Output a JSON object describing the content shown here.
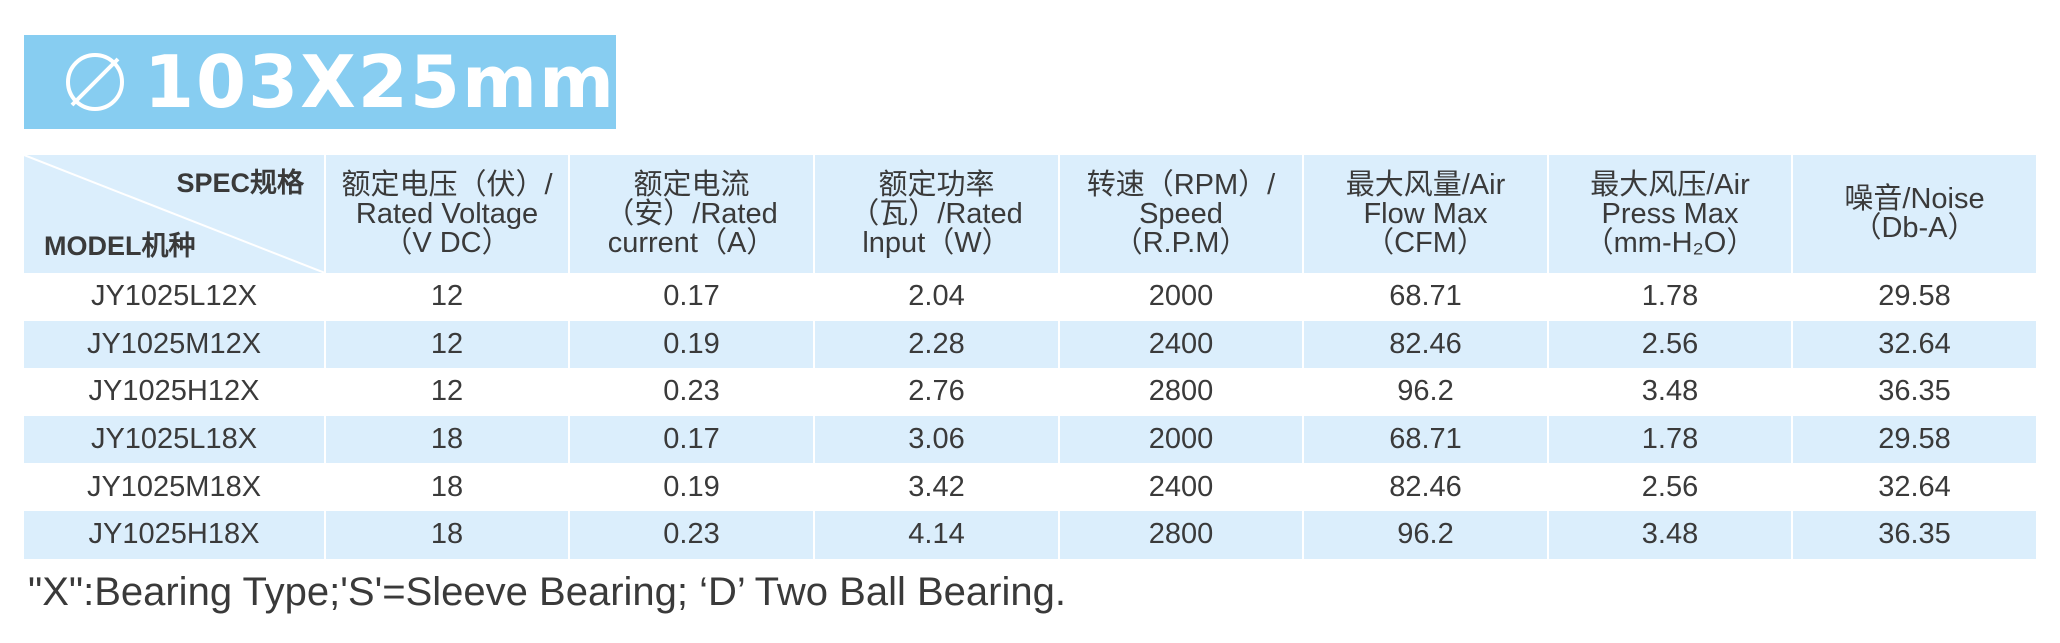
{
  "title": "103X25mm",
  "title_icon": "diameter-icon",
  "colors": {
    "banner": "#87cdf1",
    "header_bg": "#dbeefc",
    "alt_row_bg": "#dbeefc",
    "text": "#3a3a3a"
  },
  "table": {
    "corner": {
      "top_label": "SPEC规格",
      "bottom_label": "MODEL机种"
    },
    "headers": [
      [
        "额定电压（伏）/",
        "Rated Voltage",
        "（V DC）"
      ],
      [
        "额定电流",
        "（安）/Rated",
        "current（A）"
      ],
      [
        "额定功率",
        "（瓦）/Rated",
        "lnput（W）"
      ],
      [
        "转速（RPM）/",
        "Speed",
        "（R.P.M）"
      ],
      [
        "最大风量/Air",
        "Flow Max",
        "（CFM）"
      ],
      [
        "最大风压/Air",
        "Press Max",
        "（mm-H₂O）"
      ],
      [
        "噪音/Noise",
        "（Db-A）"
      ]
    ],
    "rows": [
      [
        "JY1025L12X",
        "12",
        "0.17",
        "2.04",
        "2000",
        "68.71",
        "1.78",
        "29.58"
      ],
      [
        "JY1025M12X",
        "12",
        "0.19",
        "2.28",
        "2400",
        "82.46",
        "2.56",
        "32.64"
      ],
      [
        "JY1025H12X",
        "12",
        "0.23",
        "2.76",
        "2800",
        "96.2",
        "3.48",
        "36.35"
      ],
      [
        "JY1025L18X",
        "18",
        "0.17",
        "3.06",
        "2000",
        "68.71",
        "1.78",
        "29.58"
      ],
      [
        "JY1025M18X",
        "18",
        "0.19",
        "3.42",
        "2400",
        "82.46",
        "2.56",
        "32.64"
      ],
      [
        "JY1025H18X",
        "18",
        "0.23",
        "4.14",
        "2800",
        "96.2",
        "3.48",
        "36.35"
      ]
    ]
  },
  "note": "\"X\":Bearing Type;'S'=Sleeve Bearing; ‘D’ Two Ball Bearing."
}
